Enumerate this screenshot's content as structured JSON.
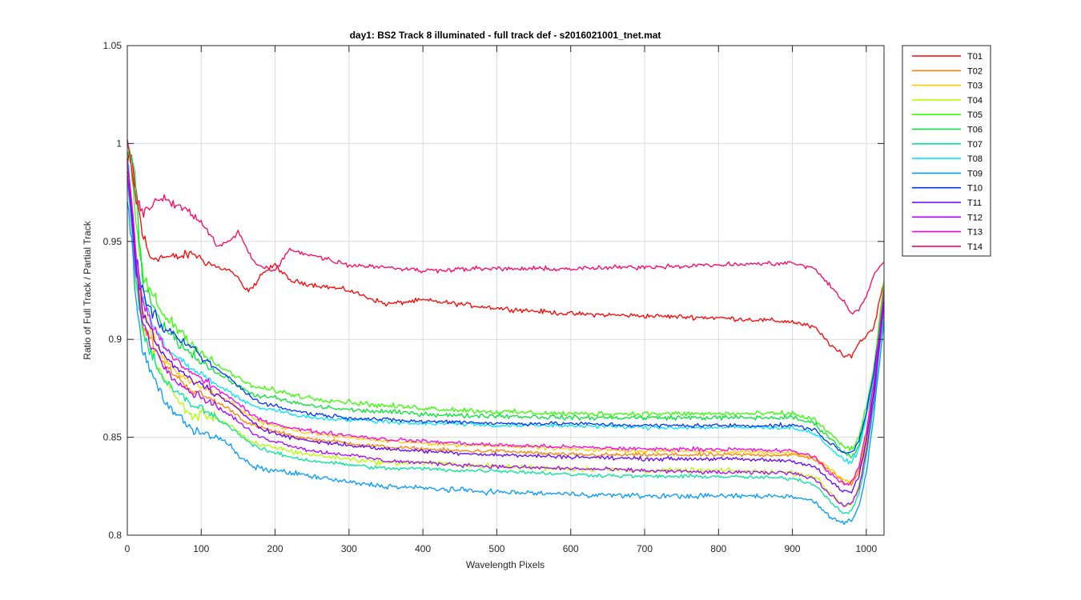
{
  "chart_data": {
    "type": "line",
    "title": "day1: BS2  Track 8 illuminated - full track def - s2016021001_tnet.mat",
    "xlabel": "Wavelength Pixels",
    "ylabel": "Ratio of Full Track / Partial Track",
    "xlim": [
      0,
      1024
    ],
    "ylim": [
      0.8,
      1.05
    ],
    "xticks": [
      0,
      100,
      200,
      300,
      400,
      500,
      600,
      700,
      800,
      900,
      1000
    ],
    "yticks": [
      0.8,
      0.85,
      0.9,
      0.95,
      1,
      1.05
    ],
    "ytick_labels": [
      "0.8",
      "0.85",
      "0.9",
      "0.95",
      "1",
      "1.05"
    ],
    "grid": true,
    "legend_position": "outside-top-right",
    "x_keypoints": [
      0,
      5,
      10,
      20,
      30,
      40,
      50,
      70,
      90,
      100,
      120,
      140,
      150,
      160,
      170,
      180,
      200,
      220,
      250,
      300,
      350,
      400,
      450,
      500,
      600,
      700,
      800,
      900,
      930,
      950,
      970,
      980,
      990,
      1000,
      1010,
      1024
    ],
    "series": [
      {
        "name": "T01",
        "color": "#ff0000",
        "noise": 0.0018,
        "values": [
          0.988,
          0.995,
          0.98,
          0.955,
          0.942,
          0.942,
          0.942,
          0.942,
          0.944,
          0.941,
          0.937,
          0.935,
          0.931,
          0.925,
          0.926,
          0.933,
          0.938,
          0.93,
          0.928,
          0.925,
          0.918,
          0.92,
          0.918,
          0.916,
          0.913,
          0.912,
          0.911,
          0.909,
          0.906,
          0.898,
          0.891,
          0.892,
          0.898,
          0.902,
          0.906,
          0.93
        ]
      },
      {
        "name": "T02",
        "color": "#ff7f00",
        "noise": 0.0015,
        "values": [
          0.985,
          0.97,
          0.945,
          0.91,
          0.9,
          0.893,
          0.887,
          0.88,
          0.873,
          0.872,
          0.868,
          0.864,
          0.861,
          0.858,
          0.856,
          0.855,
          0.853,
          0.851,
          0.849,
          0.847,
          0.845,
          0.844,
          0.843,
          0.843,
          0.841,
          0.841,
          0.841,
          0.841,
          0.839,
          0.833,
          0.827,
          0.826,
          0.832,
          0.85,
          0.875,
          0.93
        ]
      },
      {
        "name": "T03",
        "color": "#ffcc00",
        "noise": 0.0015,
        "values": [
          0.99,
          0.975,
          0.95,
          0.915,
          0.905,
          0.897,
          0.89,
          0.883,
          0.877,
          0.876,
          0.872,
          0.868,
          0.865,
          0.862,
          0.86,
          0.858,
          0.856,
          0.854,
          0.852,
          0.85,
          0.848,
          0.847,
          0.846,
          0.846,
          0.844,
          0.843,
          0.843,
          0.842,
          0.84,
          0.834,
          0.828,
          0.827,
          0.834,
          0.852,
          0.877,
          0.93
        ]
      },
      {
        "name": "T04",
        "color": "#b2ff00",
        "noise": 0.002,
        "values": [
          0.985,
          0.965,
          0.935,
          0.905,
          0.895,
          0.888,
          0.88,
          0.868,
          0.86,
          0.862,
          0.86,
          0.856,
          0.853,
          0.849,
          0.847,
          0.846,
          0.845,
          0.843,
          0.841,
          0.839,
          0.837,
          0.837,
          0.836,
          0.835,
          0.834,
          0.833,
          0.833,
          0.832,
          0.83,
          0.822,
          0.815,
          0.816,
          0.825,
          0.845,
          0.872,
          0.92
        ]
      },
      {
        "name": "T05",
        "color": "#33ff00",
        "noise": 0.002,
        "values": [
          0.998,
          0.99,
          0.965,
          0.935,
          0.925,
          0.918,
          0.912,
          0.905,
          0.897,
          0.893,
          0.887,
          0.883,
          0.88,
          0.878,
          0.876,
          0.875,
          0.874,
          0.872,
          0.87,
          0.868,
          0.866,
          0.865,
          0.864,
          0.863,
          0.862,
          0.862,
          0.862,
          0.862,
          0.859,
          0.852,
          0.845,
          0.844,
          0.85,
          0.865,
          0.885,
          0.93
        ]
      },
      {
        "name": "T06",
        "color": "#00e533",
        "noise": 0.0018,
        "values": [
          0.995,
          0.99,
          0.985,
          0.93,
          0.92,
          0.913,
          0.906,
          0.898,
          0.892,
          0.889,
          0.883,
          0.879,
          0.876,
          0.874,
          0.872,
          0.871,
          0.87,
          0.868,
          0.866,
          0.864,
          0.863,
          0.862,
          0.861,
          0.861,
          0.86,
          0.86,
          0.86,
          0.86,
          0.857,
          0.85,
          0.842,
          0.84,
          0.846,
          0.862,
          0.882,
          0.925
        ]
      },
      {
        "name": "T07",
        "color": "#00e599",
        "noise": 0.0015,
        "values": [
          0.982,
          0.96,
          0.935,
          0.905,
          0.894,
          0.886,
          0.879,
          0.872,
          0.866,
          0.865,
          0.86,
          0.855,
          0.852,
          0.849,
          0.846,
          0.844,
          0.842,
          0.84,
          0.838,
          0.836,
          0.834,
          0.834,
          0.833,
          0.833,
          0.831,
          0.83,
          0.83,
          0.829,
          0.826,
          0.818,
          0.811,
          0.812,
          0.821,
          0.84,
          0.866,
          0.915
        ]
      },
      {
        "name": "T08",
        "color": "#00e5ff",
        "noise": 0.0016,
        "values": [
          0.99,
          0.975,
          0.95,
          0.922,
          0.912,
          0.904,
          0.897,
          0.89,
          0.884,
          0.882,
          0.877,
          0.873,
          0.87,
          0.868,
          0.866,
          0.865,
          0.864,
          0.862,
          0.86,
          0.859,
          0.858,
          0.857,
          0.857,
          0.856,
          0.856,
          0.855,
          0.855,
          0.855,
          0.852,
          0.845,
          0.838,
          0.837,
          0.844,
          0.86,
          0.88,
          0.92
        ]
      },
      {
        "name": "T09",
        "color": "#0099ff",
        "noise": 0.002,
        "values": [
          0.975,
          0.955,
          0.925,
          0.895,
          0.885,
          0.877,
          0.869,
          0.86,
          0.854,
          0.853,
          0.85,
          0.846,
          0.84,
          0.838,
          0.835,
          0.834,
          0.833,
          0.832,
          0.83,
          0.827,
          0.825,
          0.824,
          0.823,
          0.822,
          0.821,
          0.82,
          0.82,
          0.82,
          0.817,
          0.81,
          0.806,
          0.808,
          0.815,
          0.832,
          0.86,
          0.91
        ]
      },
      {
        "name": "T10",
        "color": "#0033ff",
        "noise": 0.0015,
        "values": [
          0.985,
          0.97,
          0.945,
          0.925,
          0.916,
          0.91,
          0.905,
          0.9,
          0.895,
          0.891,
          0.885,
          0.88,
          0.876,
          0.873,
          0.87,
          0.868,
          0.866,
          0.864,
          0.862,
          0.86,
          0.859,
          0.858,
          0.858,
          0.857,
          0.857,
          0.856,
          0.856,
          0.856,
          0.854,
          0.847,
          0.842,
          0.842,
          0.848,
          0.863,
          0.883,
          0.92
        ]
      },
      {
        "name": "T11",
        "color": "#6600ff",
        "noise": 0.0015,
        "values": [
          0.99,
          0.975,
          0.945,
          0.915,
          0.905,
          0.898,
          0.891,
          0.884,
          0.879,
          0.877,
          0.872,
          0.867,
          0.864,
          0.861,
          0.858,
          0.855,
          0.852,
          0.85,
          0.848,
          0.846,
          0.844,
          0.843,
          0.842,
          0.841,
          0.84,
          0.839,
          0.839,
          0.838,
          0.835,
          0.828,
          0.822,
          0.822,
          0.83,
          0.848,
          0.873,
          0.92
        ]
      },
      {
        "name": "T12",
        "color": "#b200ff",
        "noise": 0.0015,
        "values": [
          0.985,
          0.965,
          0.94,
          0.91,
          0.9,
          0.893,
          0.886,
          0.878,
          0.872,
          0.871,
          0.866,
          0.861,
          0.858,
          0.855,
          0.852,
          0.85,
          0.848,
          0.846,
          0.843,
          0.841,
          0.838,
          0.837,
          0.836,
          0.835,
          0.834,
          0.833,
          0.832,
          0.832,
          0.829,
          0.821,
          0.815,
          0.816,
          0.824,
          0.843,
          0.869,
          0.918
        ]
      },
      {
        "name": "T13",
        "color": "#ff00e5",
        "noise": 0.0015,
        "values": [
          0.99,
          0.975,
          0.95,
          0.92,
          0.91,
          0.903,
          0.896,
          0.888,
          0.882,
          0.88,
          0.875,
          0.87,
          0.867,
          0.864,
          0.861,
          0.859,
          0.857,
          0.855,
          0.853,
          0.851,
          0.849,
          0.848,
          0.847,
          0.846,
          0.845,
          0.844,
          0.844,
          0.843,
          0.84,
          0.832,
          0.826,
          0.827,
          0.835,
          0.853,
          0.877,
          0.925
        ]
      },
      {
        "name": "T14",
        "color": "#ff0066",
        "noise": 0.0018,
        "values": [
          1.0,
          0.99,
          0.975,
          0.965,
          0.968,
          0.972,
          0.972,
          0.968,
          0.963,
          0.96,
          0.948,
          0.95,
          0.955,
          0.948,
          0.94,
          0.937,
          0.935,
          0.946,
          0.943,
          0.938,
          0.937,
          0.935,
          0.936,
          0.936,
          0.936,
          0.937,
          0.938,
          0.939,
          0.936,
          0.928,
          0.919,
          0.913,
          0.915,
          0.922,
          0.933,
          0.94
        ]
      }
    ]
  }
}
